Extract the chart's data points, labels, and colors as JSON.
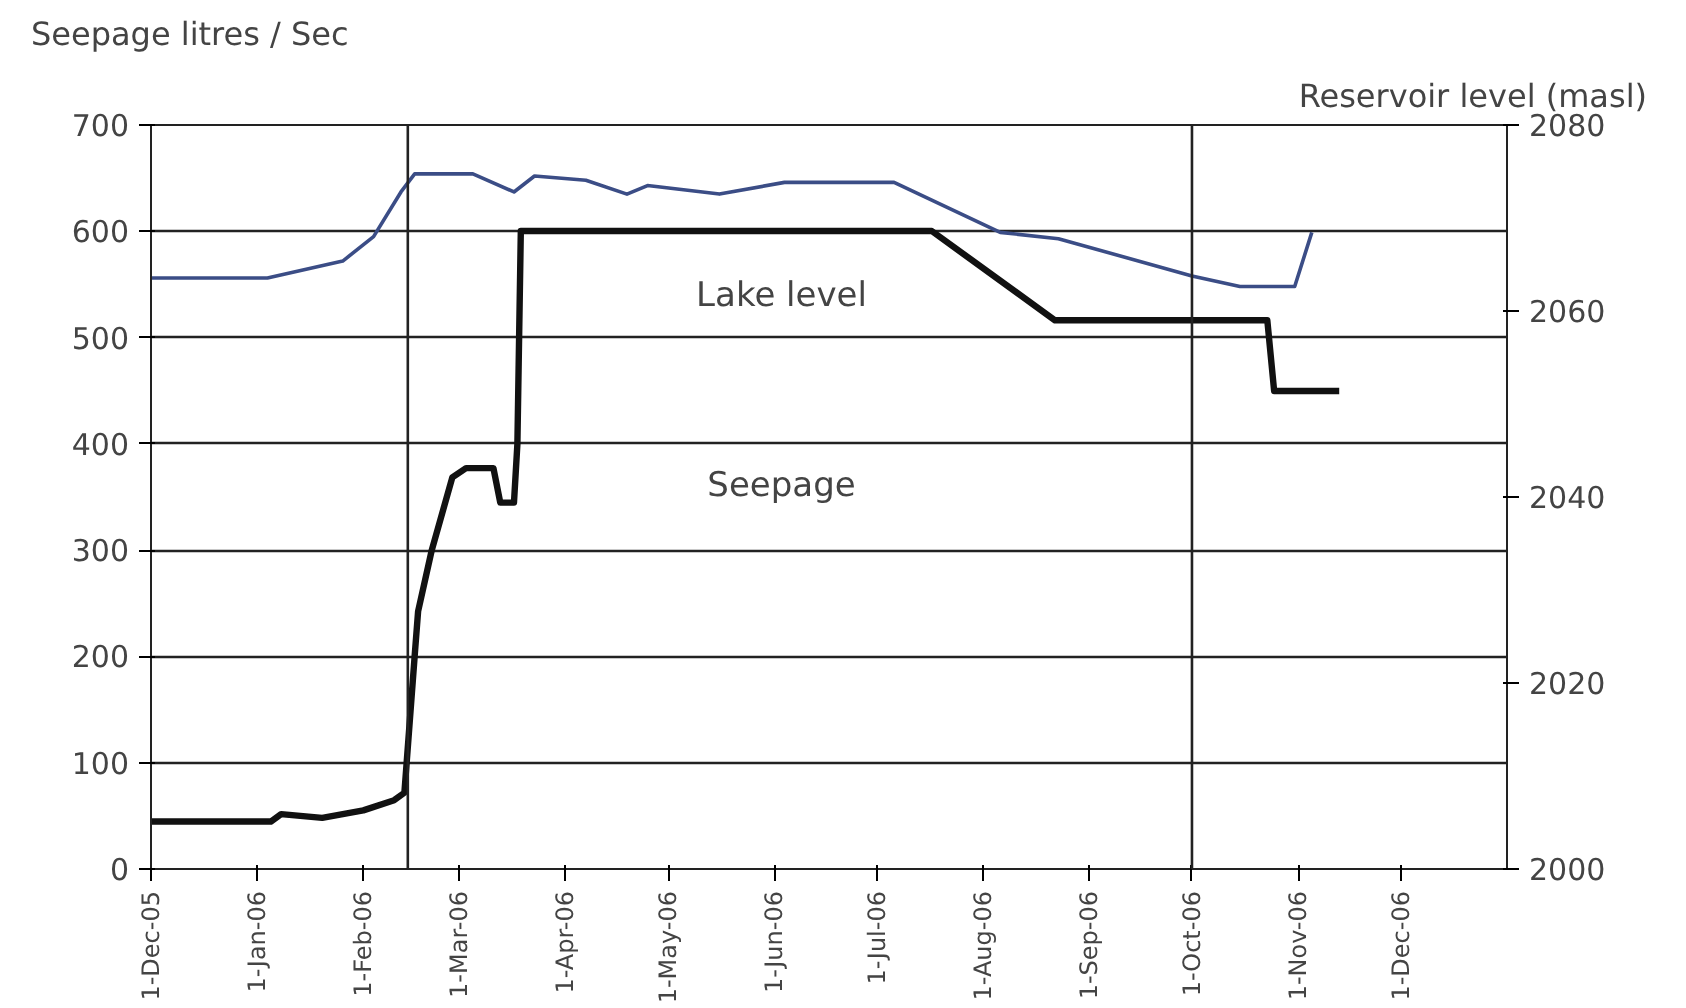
{
  "chart_data": {
    "type": "line",
    "ylabel": "Seepage litres / Sec",
    "y2label": "Reservoir level (masl)",
    "series": [
      {
        "color": "#3b4d86",
        "x": [
          "2005-12-01",
          "2006-01-04",
          "2006-01-26",
          "2006-02-04",
          "2006-02-12",
          "2006-02-16",
          "2006-03-05",
          "2006-03-17",
          "2006-03-23",
          "2006-04-07",
          "2006-04-19",
          "2006-04-25",
          "2006-05-16",
          "2006-06-04",
          "2006-07-06",
          "2006-08-06",
          "2006-08-23",
          "2006-10-01",
          "2006-10-15",
          "2006-10-31",
          "2006-11-05"
        ],
        "values": [
          556,
          556,
          572,
          595,
          637,
          654,
          654,
          637,
          652,
          648,
          635,
          643,
          635,
          646,
          646,
          599,
          593,
          558,
          548,
          548,
          599
        ]
      },
      {
        "color": "#111111",
        "axis": "y2",
        "x": [
          "2005-12-01",
          "2006-01-05",
          "2006-01-08",
          "2006-01-20",
          "2006-02-01",
          "2006-02-10",
          "2006-02-13",
          "2006-02-16",
          "2006-02-17",
          "2006-02-21",
          "2006-02-27",
          "2006-03-03",
          "2006-03-11",
          "2006-03-13",
          "2006-03-17",
          "2006-03-18",
          "2006-03-19",
          "2006-03-20",
          "2006-07-17",
          "2006-08-22",
          "2006-10-23",
          "2006-10-25",
          "2006-11-13"
        ],
        "values": [
          2005.1,
          2005.1,
          2005.9,
          2005.5,
          2006.3,
          2007.4,
          2008.2,
          2022.9,
          2027.7,
          2034.3,
          2042.1,
          2043.1,
          2043.1,
          2039.4,
          2039.4,
          2045.7,
          2068.6,
          2068.6,
          2068.6,
          2059,
          2059,
          2051.4,
          2051.4
        ]
      }
    ],
    "annotations": [
      "Lake level",
      "Seepage"
    ],
    "ref_lines": [
      {
        "axis": "x",
        "value": "2006-02-14",
        "color": "#222222"
      },
      {
        "axis": "x",
        "value": "2006-10-01",
        "color": "#222222"
      }
    ],
    "xlim": [
      "2005-12-01",
      "2007-01-01"
    ],
    "xticks": [
      {
        "value": "2005-12-01",
        "label": "1-Dec-05"
      },
      {
        "value": "2006-01-01",
        "label": "1-Jan-06"
      },
      {
        "value": "2006-02-01",
        "label": "1-Feb-06"
      },
      {
        "value": "2006-03-01",
        "label": "1-Mar-06"
      },
      {
        "value": "2006-04-01",
        "label": "1-Apr-06"
      },
      {
        "value": "2006-05-01",
        "label": "1-May-06"
      },
      {
        "value": "2006-06-01",
        "label": "1-Jun-06"
      },
      {
        "value": "2006-07-01",
        "label": "1-Jul-06"
      },
      {
        "value": "2006-08-01",
        "label": "1-Aug-06"
      },
      {
        "value": "2006-09-01",
        "label": "1-Sep-06"
      },
      {
        "value": "2006-10-01",
        "label": "1-Oct-06"
      },
      {
        "value": "2006-11-01",
        "label": "1-Nov-06"
      },
      {
        "value": "2006-12-01",
        "label": "1-Dec-06"
      }
    ],
    "ylim": [
      0,
      700
    ],
    "yticks": [
      0,
      100,
      200,
      300,
      400,
      500,
      600,
      700
    ],
    "y2lim": [
      2000,
      2080
    ],
    "y2ticks": [
      2000,
      2020,
      2040,
      2060,
      2080
    ],
    "grid": "y",
    "marker": "none",
    "line_style": "solid"
  }
}
